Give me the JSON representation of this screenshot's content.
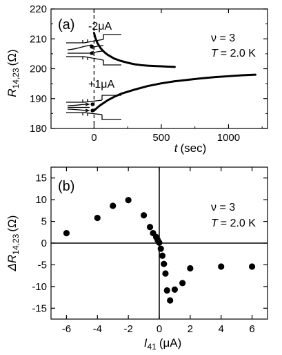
{
  "chart_data": [
    {
      "type": "line",
      "panel_label": "(a)",
      "xlabel_var": "t",
      "xlabel_unit": "(sec)",
      "ylabel_var": "R",
      "ylabel_sub": "14,23",
      "ylabel_unit": "(Ω)",
      "xlim": [
        -320,
        1290
      ],
      "ylim": [
        180,
        220
      ],
      "xticks": [
        0,
        500,
        1000
      ],
      "yticks": [
        180,
        190,
        200,
        210,
        220
      ],
      "annotations": {
        "nu": "ν = 3",
        "temp_var": "T",
        "temp_val": "= 2.0 K",
        "current_top": "-2μA",
        "current_bottom": "+1μA"
      },
      "series": [
        {
          "x": [
            0,
            10,
            25,
            50,
            75,
            100,
            150,
            200,
            250,
            300,
            350,
            400,
            450,
            500,
            550,
            600
          ],
          "values": [
            212,
            210.3,
            208.6,
            206.8,
            205.6,
            204.7,
            203.4,
            202.6,
            202,
            201.5,
            201.2,
            201,
            200.9,
            200.8,
            200.7,
            200.6
          ]
        },
        {
          "x": [
            0,
            25,
            50,
            100,
            150,
            200,
            300,
            400,
            500,
            600,
            700,
            800,
            900,
            1000,
            1100,
            1200
          ],
          "values": [
            186,
            187,
            187.9,
            189.4,
            190.6,
            191.6,
            193,
            194.2,
            195.1,
            195.8,
            196.3,
            196.8,
            197.2,
            197.5,
            197.8,
            198
          ]
        }
      ]
    },
    {
      "type": "scatter",
      "panel_label": "(b)",
      "xlabel_var": "I",
      "xlabel_sub": "41",
      "xlabel_unit": "(μA)",
      "ylabel_var": "ΔR",
      "ylabel_sub": "14,23",
      "ylabel_unit": "(Ω)",
      "xlim": [
        -7,
        7
      ],
      "ylim": [
        -17.5,
        17.5
      ],
      "xticks": [
        -6,
        -4,
        -2,
        0,
        2,
        4,
        6
      ],
      "yticks": [
        -15,
        -10,
        -5,
        0,
        5,
        10,
        15
      ],
      "annotations": {
        "nu": "ν = 3",
        "temp_var": "T",
        "temp_val": "= 2.0 K"
      },
      "x": [
        -6,
        -4,
        -3,
        -2,
        -1,
        -0.6,
        -0.4,
        -0.2,
        -0.1,
        0,
        0.1,
        0.2,
        0.3,
        0.4,
        0.5,
        0.7,
        1.0,
        1.5,
        2,
        4,
        6
      ],
      "y": [
        2.3,
        5.8,
        8.6,
        9.9,
        6.4,
        3.7,
        2.3,
        1.4,
        0.7,
        0.1,
        -1.3,
        -2.9,
        -4.8,
        -7.0,
        -10.9,
        -13.2,
        -10.7,
        -9.2,
        -5.8,
        -5.4,
        -5.4
      ]
    }
  ]
}
